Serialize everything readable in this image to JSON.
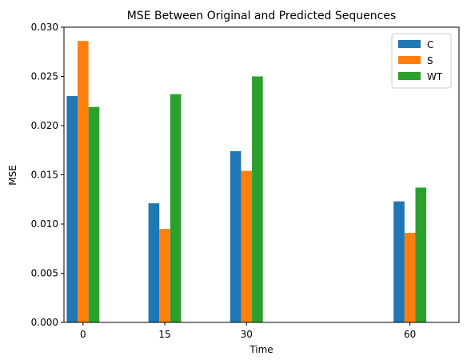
{
  "chart_data": {
    "type": "bar",
    "title": "MSE Between Original and Predicted Sequences",
    "xlabel": "Time",
    "ylabel": "MSE",
    "x": [
      0,
      15,
      30,
      60
    ],
    "xlim": [
      -3.5,
      69
    ],
    "ylim": [
      0,
      0.03
    ],
    "yticks": [
      "0.000",
      "0.005",
      "0.010",
      "0.015",
      "0.020",
      "0.025",
      "0.030"
    ],
    "xticks": [
      "0",
      "15",
      "30",
      "60"
    ],
    "bar_width": 2,
    "legend_position": "top-right",
    "grid": false,
    "series": [
      {
        "name": "C",
        "color": "#1f77b4",
        "values": [
          0.023,
          0.0121,
          0.0174,
          0.0123
        ]
      },
      {
        "name": "S",
        "color": "#ff7f0e",
        "values": [
          0.0286,
          0.0095,
          0.0154,
          0.0091
        ]
      },
      {
        "name": "WT",
        "color": "#2ca02c",
        "values": [
          0.0219,
          0.0232,
          0.025,
          0.0137
        ]
      }
    ]
  }
}
